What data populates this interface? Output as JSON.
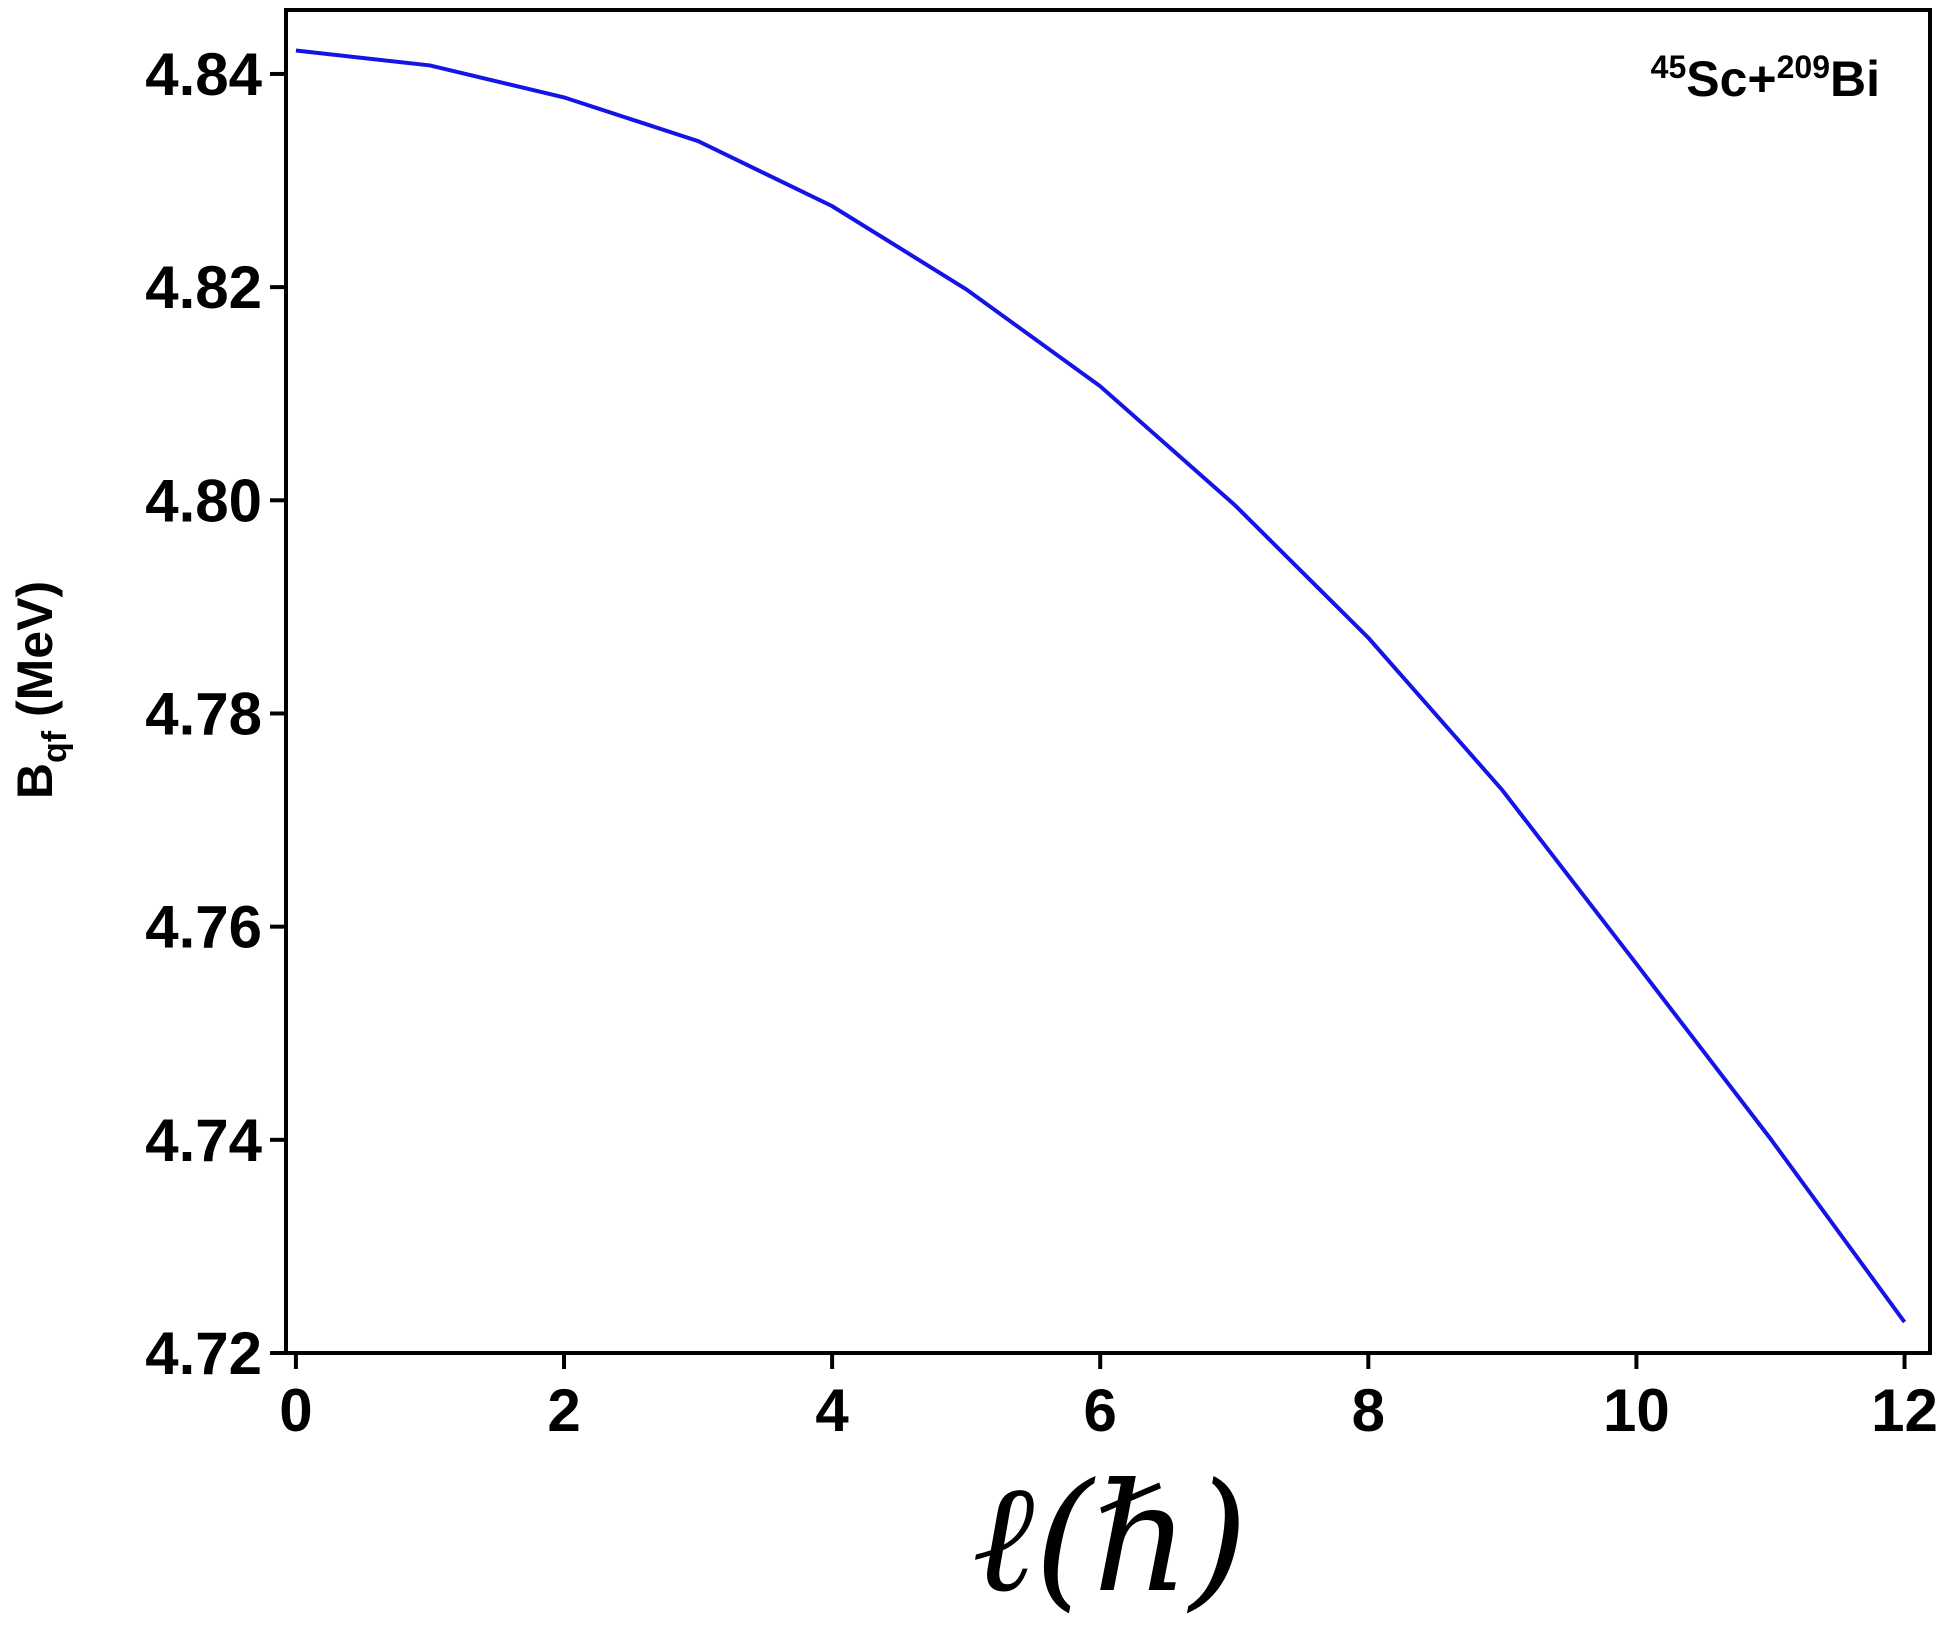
{
  "chart_data": {
    "type": "line",
    "x": [
      0,
      1,
      2,
      3,
      4,
      5,
      6,
      7,
      8,
      9,
      10,
      11,
      12
    ],
    "series": [
      {
        "color": "#1414e6",
        "values": [
          4.8422,
          4.8408,
          4.8378,
          4.8337,
          4.8276,
          4.8198,
          4.8107,
          4.7996,
          4.7871,
          4.7728,
          4.7565,
          4.7401,
          4.7229
        ]
      }
    ],
    "xlim": [
      -0.074,
      12.19
    ],
    "ylim": [
      4.72,
      4.846
    ],
    "xticks": [
      0,
      2,
      4,
      6,
      8,
      10,
      12
    ],
    "yticks": [
      4.72,
      4.74,
      4.76,
      4.78,
      {
        "value": 4.8,
        "label": "4.80"
      },
      4.82,
      4.84
    ],
    "xlabel": "ℓ(ℏ)",
    "ylabel": [
      "B",
      "qf",
      " (MeV)"
    ],
    "annotation": [
      "45",
      "Sc+",
      "209",
      "Bi"
    ],
    "grid": false
  }
}
